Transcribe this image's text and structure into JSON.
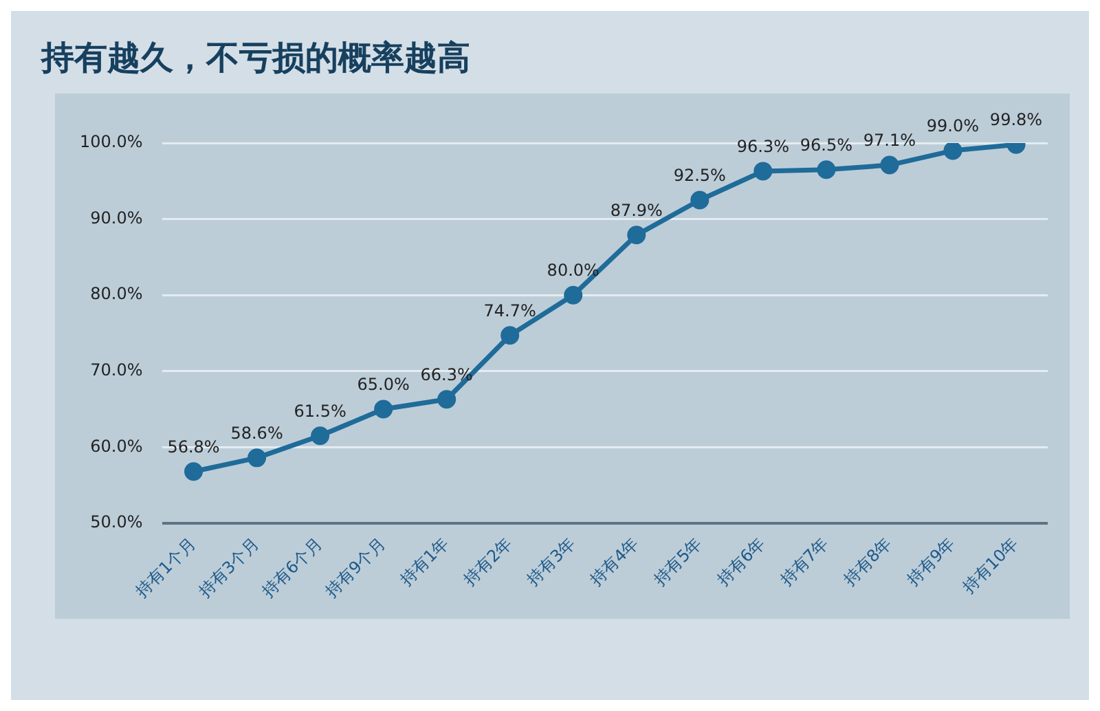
{
  "chart_data": {
    "type": "line",
    "title": "持有越久，不亏损的概率越高",
    "categories": [
      "持有1个月",
      "持有3个月",
      "持有6个月",
      "持有9个月",
      "持有1年",
      "持有2年",
      "持有3年",
      "持有4年",
      "持有5年",
      "持有6年",
      "持有7年",
      "持有8年",
      "持有9年",
      "持有10年"
    ],
    "series": [
      {
        "color": "#1f6b99",
        "values": [
          56.8,
          58.6,
          61.5,
          65.0,
          66.3,
          74.7,
          80.0,
          87.9,
          92.5,
          96.3,
          96.5,
          97.1,
          99.0,
          99.8
        ],
        "value_labels": [
          "56.8%",
          "58.6%",
          "61.5%",
          "65.0%",
          "66.3%",
          "74.7%",
          "80.0%",
          "87.9%",
          "92.5%",
          "96.3%",
          "96.5%",
          "97.1%",
          "99.0%",
          "99.8%"
        ]
      }
    ],
    "ylim": [
      50,
      100
    ],
    "yticks": [
      {
        "value": 50,
        "label": "50.0%"
      },
      {
        "value": 60,
        "label": "60.0%"
      },
      {
        "value": 70,
        "label": "70.0%"
      },
      {
        "value": 80,
        "label": "80.0%"
      },
      {
        "value": 90,
        "label": "90.0%"
      },
      {
        "value": 100,
        "label": "100.0%"
      }
    ],
    "grid": "y",
    "marker": "circle",
    "line_style": "solid",
    "legend": false
  }
}
